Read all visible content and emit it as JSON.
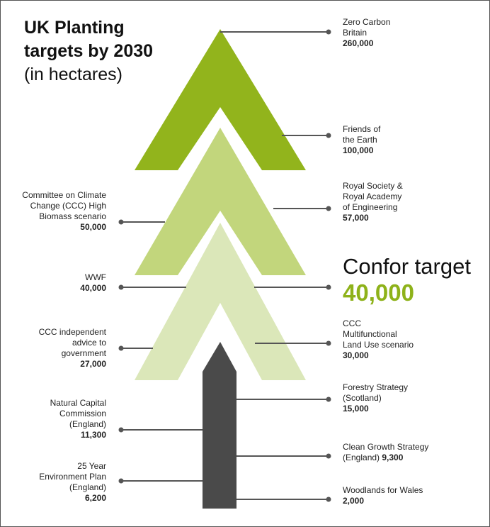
{
  "title": {
    "line1": "UK Planting",
    "line2": "targets by 2030",
    "subtitle": "(in hectares)"
  },
  "colors": {
    "arrow_dark_green": "#92b41c",
    "arrow_mid_green": "#c2d67c",
    "arrow_light_green": "#dbe7b9",
    "tree_trunk": "#4a4a4a",
    "leader_line": "#555555",
    "accent": "#8eb21a"
  },
  "confor": {
    "title": "Confor target",
    "value": "40,000"
  },
  "chart_data": {
    "type": "bar",
    "title": "UK Planting targets by 2030",
    "subtitle": "(in hectares)",
    "categories": [
      "Zero Carbon Britain",
      "Friends of the Earth",
      "Royal Society & Royal Academy of Engineering",
      "Committee on Climate Change (CCC) High Biomass scenario",
      "WWF",
      "Confor target",
      "CCC Multifunctional Land Use scenario",
      "CCC independent advice to government",
      "Forestry Strategy (Scotland)",
      "Natural Capital Commission (England)",
      "Clean Growth Strategy (England)",
      "25 Year Environment Plan (England)",
      "Woodlands for Wales"
    ],
    "values": [
      260000,
      100000,
      57000,
      50000,
      40000,
      40000,
      30000,
      27000,
      15000,
      11300,
      9300,
      6200,
      2000
    ]
  },
  "annotations": [
    {
      "lines": [
        "Zero Carbon",
        "Britain"
      ],
      "value": "260,000"
    },
    {
      "lines": [
        "Friends of",
        "the Earth"
      ],
      "value": "100,000"
    },
    {
      "lines": [
        "Royal Society &",
        "Royal Academy",
        "of Engineering"
      ],
      "value": "57,000"
    },
    {
      "lines": [
        "Committee on Climate",
        "Change (CCC) High",
        "Biomass scenario"
      ],
      "value": "50,000"
    },
    {
      "lines": [
        "WWF"
      ],
      "value": "40,000"
    },
    {
      "lines": [
        "CCC",
        "Multifunctional",
        "Land Use scenario"
      ],
      "value": "30,000"
    },
    {
      "lines": [
        "CCC independent",
        "advice to",
        "government"
      ],
      "value": "27,000"
    },
    {
      "lines": [
        "Forestry Strategy",
        "(Scotland)"
      ],
      "value": "15,000"
    },
    {
      "lines": [
        "Natural Capital",
        "Commission",
        "(England)"
      ],
      "value": "11,300"
    },
    {
      "lines": [
        "Clean Growth Strategy",
        "(England)"
      ],
      "value": "9,300"
    },
    {
      "lines": [
        "25 Year",
        "Environment Plan",
        "(England)"
      ],
      "value": "6,200"
    },
    {
      "lines": [
        "Woodlands for Wales"
      ],
      "value": "2,000"
    }
  ]
}
